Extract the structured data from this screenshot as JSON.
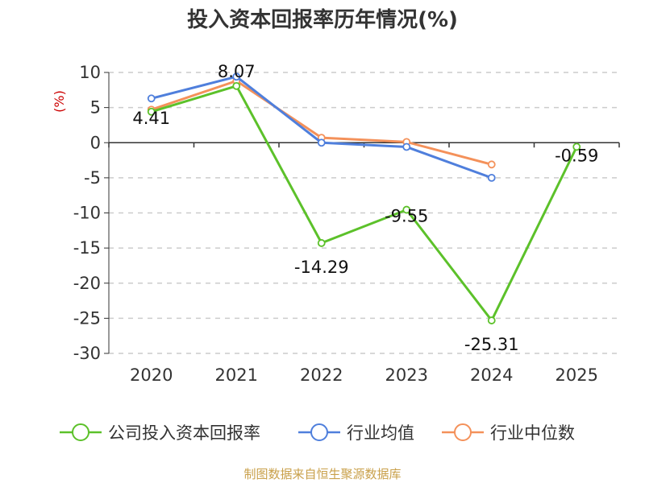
{
  "chart_data": {
    "type": "line",
    "title": "投入资本回报率历年情况(%)",
    "ylabel": "(%)",
    "xlabel": "",
    "categories": [
      "2020",
      "2021",
      "2022",
      "2023",
      "2024",
      "2025"
    ],
    "ylim": [
      -30,
      10
    ],
    "yticks": [
      10,
      5,
      0,
      -5,
      -10,
      -15,
      -20,
      -25,
      -30
    ],
    "grid": true,
    "legend_position": "bottom",
    "series": [
      {
        "name": "公司投入资本回报率",
        "color": "#5cc12a",
        "values": [
          4.41,
          8.07,
          -14.29,
          -9.55,
          -25.31,
          -0.59
        ],
        "labels": [
          "4.41",
          "8.07",
          "-14.29",
          "-9.55",
          "-25.31",
          "-0.59"
        ]
      },
      {
        "name": "行业均值",
        "color": "#4f7fdc",
        "values": [
          6.3,
          9.4,
          0.0,
          -0.6,
          -5.0,
          null
        ]
      },
      {
        "name": "行业中位数",
        "color": "#f4915a",
        "values": [
          4.7,
          8.8,
          0.7,
          0.1,
          -3.1,
          null
        ]
      }
    ]
  },
  "source": "制图数据来自恒生聚源数据库"
}
